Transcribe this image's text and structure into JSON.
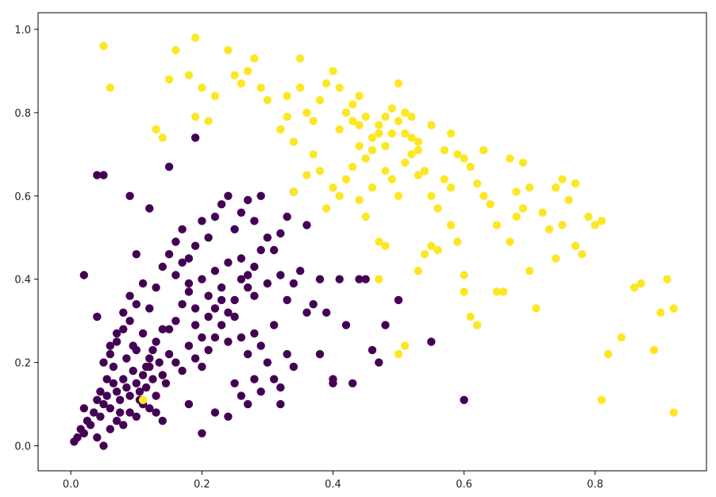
{
  "chart_data": {
    "type": "scatter",
    "title": "",
    "xlabel": "",
    "ylabel": "",
    "xlim": [
      -0.05,
      0.97
    ],
    "ylim": [
      -0.06,
      1.04
    ],
    "xticks": [
      0.0,
      0.2,
      0.4,
      0.6,
      0.8
    ],
    "xtick_labels": [
      "0.0",
      "0.2",
      "0.4",
      "0.6",
      "0.8"
    ],
    "yticks": [
      0.0,
      0.2,
      0.4,
      0.6,
      0.8,
      1.0
    ],
    "ytick_labels": [
      "0.0",
      "0.2",
      "0.4",
      "0.6",
      "0.8",
      "1.0"
    ],
    "grid": false,
    "legend": "none",
    "series": [
      {
        "color": "#440154",
        "points": [
          [
            0.005,
            0.01
          ],
          [
            0.01,
            0.02
          ],
          [
            0.015,
            0.04
          ],
          [
            0.02,
            0.03
          ],
          [
            0.025,
            0.06
          ],
          [
            0.03,
            0.05
          ],
          [
            0.02,
            0.09
          ],
          [
            0.035,
            0.08
          ],
          [
            0.04,
            0.11
          ],
          [
            0.045,
            0.07
          ],
          [
            0.05,
            0.1
          ],
          [
            0.055,
            0.12
          ],
          [
            0.06,
            0.09
          ],
          [
            0.065,
            0.15
          ],
          [
            0.07,
            0.13
          ],
          [
            0.075,
            0.11
          ],
          [
            0.08,
            0.16
          ],
          [
            0.085,
            0.14
          ],
          [
            0.09,
            0.12
          ],
          [
            0.095,
            0.18
          ],
          [
            0.1,
            0.15
          ],
          [
            0.105,
            0.13
          ],
          [
            0.11,
            0.17
          ],
          [
            0.115,
            0.14
          ],
          [
            0.12,
            0.19
          ],
          [
            0.125,
            0.16
          ],
          [
            0.13,
            0.12
          ],
          [
            0.135,
            0.2
          ],
          [
            0.14,
            0.17
          ],
          [
            0.145,
            0.15
          ],
          [
            0.05,
            0.2
          ],
          [
            0.06,
            0.22
          ],
          [
            0.07,
            0.25
          ],
          [
            0.08,
            0.28
          ],
          [
            0.09,
            0.3
          ],
          [
            0.1,
            0.23
          ],
          [
            0.11,
            0.27
          ],
          [
            0.12,
            0.21
          ],
          [
            0.13,
            0.25
          ],
          [
            0.14,
            0.28
          ],
          [
            0.05,
            0.0
          ],
          [
            0.06,
            0.04
          ],
          [
            0.07,
            0.06
          ],
          [
            0.08,
            0.05
          ],
          [
            0.09,
            0.08
          ],
          [
            0.1,
            0.07
          ],
          [
            0.11,
            0.1
          ],
          [
            0.12,
            0.09
          ],
          [
            0.13,
            0.08
          ],
          [
            0.14,
            0.06
          ],
          [
            0.04,
            0.02
          ],
          [
            0.045,
            0.13
          ],
          [
            0.055,
            0.16
          ],
          [
            0.065,
            0.19
          ],
          [
            0.075,
            0.08
          ],
          [
            0.085,
            0.21
          ],
          [
            0.095,
            0.24
          ],
          [
            0.105,
            0.11
          ],
          [
            0.115,
            0.19
          ],
          [
            0.125,
            0.23
          ],
          [
            0.15,
            0.22
          ],
          [
            0.16,
            0.2
          ],
          [
            0.17,
            0.18
          ],
          [
            0.18,
            0.24
          ],
          [
            0.19,
            0.21
          ],
          [
            0.2,
            0.19
          ],
          [
            0.21,
            0.23
          ],
          [
            0.22,
            0.26
          ],
          [
            0.23,
            0.29
          ],
          [
            0.24,
            0.25
          ],
          [
            0.15,
            0.28
          ],
          [
            0.16,
            0.3
          ],
          [
            0.17,
            0.34
          ],
          [
            0.18,
            0.37
          ],
          [
            0.19,
            0.33
          ],
          [
            0.2,
            0.4
          ],
          [
            0.21,
            0.36
          ],
          [
            0.22,
            0.42
          ],
          [
            0.23,
            0.38
          ],
          [
            0.24,
            0.44
          ],
          [
            0.15,
            0.46
          ],
          [
            0.16,
            0.49
          ],
          [
            0.17,
            0.52
          ],
          [
            0.18,
            0.45
          ],
          [
            0.19,
            0.48
          ],
          [
            0.2,
            0.54
          ],
          [
            0.21,
            0.5
          ],
          [
            0.22,
            0.55
          ],
          [
            0.23,
            0.58
          ],
          [
            0.24,
            0.6
          ],
          [
            0.25,
            0.35
          ],
          [
            0.26,
            0.4
          ],
          [
            0.27,
            0.38
          ],
          [
            0.28,
            0.43
          ],
          [
            0.29,
            0.47
          ],
          [
            0.3,
            0.39
          ],
          [
            0.31,
            0.29
          ],
          [
            0.32,
            0.41
          ],
          [
            0.33,
            0.35
          ],
          [
            0.34,
            0.39
          ],
          [
            0.25,
            0.31
          ],
          [
            0.26,
            0.26
          ],
          [
            0.27,
            0.22
          ],
          [
            0.28,
            0.27
          ],
          [
            0.29,
            0.24
          ],
          [
            0.3,
            0.2
          ],
          [
            0.31,
            0.16
          ],
          [
            0.32,
            0.14
          ],
          [
            0.33,
            0.22
          ],
          [
            0.34,
            0.19
          ],
          [
            0.25,
            0.15
          ],
          [
            0.26,
            0.12
          ],
          [
            0.27,
            0.1
          ],
          [
            0.28,
            0.16
          ],
          [
            0.29,
            0.13
          ],
          [
            0.22,
            0.08
          ],
          [
            0.24,
            0.07
          ],
          [
            0.2,
            0.03
          ],
          [
            0.32,
            0.1
          ],
          [
            0.18,
            0.1
          ],
          [
            0.25,
            0.52
          ],
          [
            0.26,
            0.56
          ],
          [
            0.27,
            0.59
          ],
          [
            0.28,
            0.54
          ],
          [
            0.29,
            0.6
          ],
          [
            0.3,
            0.5
          ],
          [
            0.31,
            0.47
          ],
          [
            0.32,
            0.51
          ],
          [
            0.33,
            0.55
          ],
          [
            0.34,
            0.61
          ],
          [
            0.35,
            0.42
          ],
          [
            0.36,
            0.53
          ],
          [
            0.37,
            0.34
          ],
          [
            0.38,
            0.4
          ],
          [
            0.39,
            0.32
          ],
          [
            0.4,
            0.16
          ],
          [
            0.42,
            0.29
          ],
          [
            0.43,
            0.15
          ],
          [
            0.44,
            0.4
          ],
          [
            0.46,
            0.23
          ],
          [
            0.41,
            0.4
          ],
          [
            0.45,
            0.4
          ],
          [
            0.47,
            0.2
          ],
          [
            0.48,
            0.29
          ],
          [
            0.5,
            0.35
          ],
          [
            0.55,
            0.25
          ],
          [
            0.6,
            0.11
          ],
          [
            0.38,
            0.22
          ],
          [
            0.36,
            0.32
          ],
          [
            0.4,
            0.15
          ],
          [
            0.04,
            0.31
          ],
          [
            0.02,
            0.41
          ],
          [
            0.04,
            0.65
          ],
          [
            0.05,
            0.65
          ],
          [
            0.09,
            0.6
          ],
          [
            0.12,
            0.57
          ],
          [
            0.15,
            0.67
          ],
          [
            0.19,
            0.74
          ],
          [
            0.1,
            0.46
          ],
          [
            0.11,
            0.39
          ],
          [
            0.13,
            0.38
          ],
          [
            0.14,
            0.43
          ],
          [
            0.12,
            0.33
          ],
          [
            0.1,
            0.34
          ],
          [
            0.09,
            0.36
          ],
          [
            0.08,
            0.32
          ],
          [
            0.07,
            0.27
          ],
          [
            0.06,
            0.24
          ],
          [
            0.16,
            0.41
          ],
          [
            0.17,
            0.44
          ],
          [
            0.18,
            0.39
          ],
          [
            0.19,
            0.29
          ],
          [
            0.2,
            0.26
          ],
          [
            0.21,
            0.31
          ],
          [
            0.22,
            0.33
          ],
          [
            0.23,
            0.35
          ],
          [
            0.24,
            0.32
          ],
          [
            0.26,
            0.45
          ],
          [
            0.27,
            0.41
          ],
          [
            0.28,
            0.36
          ]
        ]
      },
      {
        "color": "#fde725",
        "points": [
          [
            0.05,
            0.96
          ],
          [
            0.06,
            0.86
          ],
          [
            0.13,
            0.76
          ],
          [
            0.14,
            0.74
          ],
          [
            0.15,
            0.88
          ],
          [
            0.16,
            0.95
          ],
          [
            0.18,
            0.89
          ],
          [
            0.19,
            0.79
          ],
          [
            0.19,
            0.98
          ],
          [
            0.2,
            0.86
          ],
          [
            0.21,
            0.78
          ],
          [
            0.22,
            0.84
          ],
          [
            0.24,
            0.95
          ],
          [
            0.25,
            0.89
          ],
          [
            0.26,
            0.87
          ],
          [
            0.27,
            0.9
          ],
          [
            0.28,
            0.93
          ],
          [
            0.29,
            0.86
          ],
          [
            0.3,
            0.83
          ],
          [
            0.32,
            0.76
          ],
          [
            0.33,
            0.79
          ],
          [
            0.34,
            0.73
          ],
          [
            0.33,
            0.84
          ],
          [
            0.35,
            0.86
          ],
          [
            0.36,
            0.8
          ],
          [
            0.37,
            0.78
          ],
          [
            0.38,
            0.83
          ],
          [
            0.39,
            0.87
          ],
          [
            0.4,
            0.9
          ],
          [
            0.41,
            0.86
          ],
          [
            0.42,
            0.8
          ],
          [
            0.43,
            0.82
          ],
          [
            0.44,
            0.77
          ],
          [
            0.45,
            0.79
          ],
          [
            0.46,
            0.74
          ],
          [
            0.47,
            0.77
          ],
          [
            0.48,
            0.72
          ],
          [
            0.49,
            0.75
          ],
          [
            0.5,
            0.78
          ],
          [
            0.51,
            0.8
          ],
          [
            0.5,
            0.87
          ],
          [
            0.52,
            0.74
          ],
          [
            0.53,
            0.71
          ],
          [
            0.35,
            0.93
          ],
          [
            0.42,
            0.8
          ],
          [
            0.44,
            0.84
          ],
          [
            0.41,
            0.76
          ],
          [
            0.46,
            0.71
          ],
          [
            0.48,
            0.79
          ],
          [
            0.51,
            0.75
          ],
          [
            0.34,
            0.61
          ],
          [
            0.36,
            0.65
          ],
          [
            0.37,
            0.7
          ],
          [
            0.38,
            0.66
          ],
          [
            0.39,
            0.57
          ],
          [
            0.4,
            0.62
          ],
          [
            0.41,
            0.6
          ],
          [
            0.42,
            0.64
          ],
          [
            0.43,
            0.67
          ],
          [
            0.44,
            0.59
          ],
          [
            0.45,
            0.55
          ],
          [
            0.46,
            0.62
          ],
          [
            0.47,
            0.49
          ],
          [
            0.48,
            0.66
          ],
          [
            0.49,
            0.64
          ],
          [
            0.5,
            0.6
          ],
          [
            0.51,
            0.68
          ],
          [
            0.52,
            0.7
          ],
          [
            0.53,
            0.65
          ],
          [
            0.54,
            0.66
          ],
          [
            0.55,
            0.6
          ],
          [
            0.56,
            0.57
          ],
          [
            0.57,
            0.64
          ],
          [
            0.58,
            0.62
          ],
          [
            0.59,
            0.7
          ],
          [
            0.6,
            0.69
          ],
          [
            0.61,
            0.67
          ],
          [
            0.62,
            0.63
          ],
          [
            0.63,
            0.6
          ],
          [
            0.64,
            0.58
          ],
          [
            0.53,
            0.42
          ],
          [
            0.54,
            0.46
          ],
          [
            0.55,
            0.48
          ],
          [
            0.56,
            0.47
          ],
          [
            0.58,
            0.53
          ],
          [
            0.59,
            0.49
          ],
          [
            0.6,
            0.37
          ],
          [
            0.61,
            0.31
          ],
          [
            0.62,
            0.29
          ],
          [
            0.6,
            0.41
          ],
          [
            0.65,
            0.53
          ],
          [
            0.66,
            0.37
          ],
          [
            0.67,
            0.49
          ],
          [
            0.68,
            0.55
          ],
          [
            0.69,
            0.57
          ],
          [
            0.7,
            0.42
          ],
          [
            0.71,
            0.33
          ],
          [
            0.68,
            0.61
          ],
          [
            0.69,
            0.68
          ],
          [
            0.7,
            0.62
          ],
          [
            0.72,
            0.56
          ],
          [
            0.73,
            0.52
          ],
          [
            0.74,
            0.45
          ],
          [
            0.75,
            0.53
          ],
          [
            0.76,
            0.59
          ],
          [
            0.77,
            0.48
          ],
          [
            0.78,
            0.46
          ],
          [
            0.79,
            0.55
          ],
          [
            0.8,
            0.53
          ],
          [
            0.81,
            0.54
          ],
          [
            0.74,
            0.62
          ],
          [
            0.75,
            0.64
          ],
          [
            0.77,
            0.63
          ],
          [
            0.82,
            0.22
          ],
          [
            0.81,
            0.11
          ],
          [
            0.84,
            0.26
          ],
          [
            0.86,
            0.38
          ],
          [
            0.87,
            0.39
          ],
          [
            0.89,
            0.23
          ],
          [
            0.9,
            0.32
          ],
          [
            0.91,
            0.4
          ],
          [
            0.92,
            0.33
          ],
          [
            0.92,
            0.08
          ],
          [
            0.5,
            0.22
          ],
          [
            0.51,
            0.24
          ],
          [
            0.47,
            0.4
          ],
          [
            0.48,
            0.48
          ],
          [
            0.63,
            0.71
          ],
          [
            0.67,
            0.69
          ],
          [
            0.65,
            0.37
          ],
          [
            0.57,
            0.71
          ],
          [
            0.58,
            0.75
          ],
          [
            0.55,
            0.77
          ],
          [
            0.53,
            0.73
          ],
          [
            0.45,
            0.69
          ],
          [
            0.47,
            0.75
          ],
          [
            0.49,
            0.81
          ],
          [
            0.52,
            0.79
          ],
          [
            0.44,
            0.72
          ],
          [
            0.43,
            0.78
          ],
          [
            0.11,
            0.11
          ]
        ]
      }
    ]
  }
}
